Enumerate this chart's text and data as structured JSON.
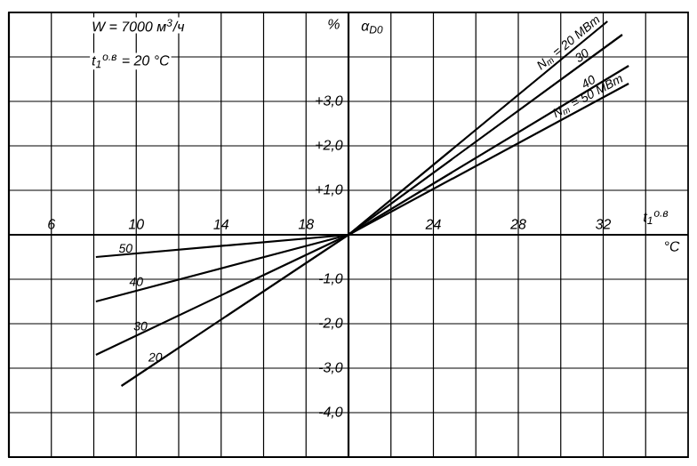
{
  "chart_data": {
    "type": "line",
    "xlabel": "t$_{1}$$^{о.в}$",
    "ylabel": "α$_{D0}$",
    "xlim": [
      4,
      36
    ],
    "ylim": [
      -5,
      5
    ],
    "xticks": [
      6,
      {
        "value": 8,
        "label": null
      },
      10,
      {
        "value": 12,
        "label": null
      },
      14,
      {
        "value": 16,
        "label": null
      },
      18,
      {
        "value": 20,
        "label": null
      },
      {
        "value": 22,
        "label": null
      },
      24,
      {
        "value": 26,
        "label": null
      },
      28,
      {
        "value": 30,
        "label": null
      },
      32,
      {
        "value": 34,
        "label": null
      }
    ],
    "yticks": [
      {
        "value": -4,
        "label": "-4,0"
      },
      {
        "value": -3,
        "label": "-3,0"
      },
      {
        "value": -2,
        "label": "-2,0"
      },
      {
        "value": -1,
        "label": "-1,0"
      },
      {
        "value": 0,
        "label": null
      },
      {
        "value": 1,
        "label": "+1,0"
      },
      {
        "value": 2,
        "label": "+2,0"
      },
      {
        "value": 3,
        "label": "+3,0"
      },
      {
        "value": 4,
        "label": null
      }
    ],
    "grid": true,
    "marker": "none",
    "line_style": "solid",
    "series": [
      {
        "name": "N$_{т}$ = 20 МВт",
        "color": "#000000",
        "x": [
          9.3,
          20,
          32.2
        ],
        "values": [
          -3.4,
          0,
          4.8
        ]
      },
      {
        "name": "30",
        "color": "#000000",
        "x": [
          8.1,
          20,
          32.9
        ],
        "values": [
          -2.7,
          0,
          4.5
        ]
      },
      {
        "name": "40",
        "color": "#000000",
        "x": [
          8.1,
          20,
          33.2
        ],
        "values": [
          -1.5,
          0,
          3.8
        ]
      },
      {
        "name": "N$_{т}$ = 50 МВт",
        "color": "#000000",
        "x": [
          8.1,
          20,
          33.2
        ],
        "values": [
          -0.5,
          0,
          3.4
        ]
      }
    ],
    "annotations": [
      "W = 7000 м$^{3}$/ч",
      "t$_{1}$$^{о.в}$ = 20 °C",
      "%",
      "°C",
      {
        "text": "50",
        "x": 9.5,
        "y": -0.45
      },
      {
        "text": "40",
        "x": 10,
        "y": -1.2
      },
      {
        "text": "30",
        "x": 10.2,
        "y": -2.2
      },
      {
        "text": "20",
        "x": 10.9,
        "y": -2.9
      }
    ]
  }
}
